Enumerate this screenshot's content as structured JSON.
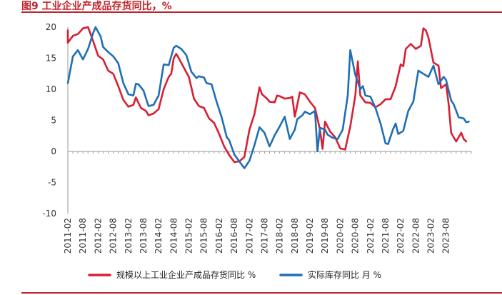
{
  "title": "图9  工业企业产成品存货同比，%",
  "colors": {
    "accent": "#c0232b",
    "series1": "#d71f34",
    "series2": "#1f6fb5",
    "axis": "#9a9a9a"
  },
  "chart_data": {
    "type": "line",
    "x_ticks": [
      "2011-02",
      "2011-08",
      "2012-02",
      "2012-08",
      "2013-02",
      "2013-08",
      "2014-02",
      "2014-08",
      "2015-02",
      "2015-08",
      "2016-02",
      "2016-08",
      "2017-02",
      "2017-08",
      "2018-02",
      "2018-08",
      "2019-02",
      "2019-08",
      "2020-02",
      "2020-08",
      "2021-02",
      "2021-08",
      "2022-02",
      "2022-08",
      "2023-02",
      "2023-08"
    ],
    "y_ticks": [
      20,
      15,
      10,
      5,
      0,
      -5,
      -10
    ],
    "ylim": [
      -10,
      20
    ],
    "grid": false,
    "legend_position": "bottom",
    "series": [
      {
        "name": "规模以上工业企业产成品存货同比 %",
        "color": "#d71f34",
        "points": [
          [
            "2011-02",
            19.5
          ],
          [
            "2011-02",
            17.5
          ],
          [
            "2011-04",
            18.6
          ],
          [
            "2011-06",
            18.9
          ],
          [
            "2011-08",
            19.8
          ],
          [
            "2011-10",
            20.0
          ],
          [
            "2011-12",
            17.8
          ],
          [
            "2012-02",
            15.4
          ],
          [
            "2012-04",
            14.8
          ],
          [
            "2012-06",
            13.0
          ],
          [
            "2012-08",
            12.5
          ],
          [
            "2012-10",
            10.5
          ],
          [
            "2012-12",
            8.3
          ],
          [
            "2013-02",
            7.2
          ],
          [
            "2013-04",
            7.5
          ],
          [
            "2013-05",
            8.7
          ],
          [
            "2013-06",
            7.8
          ],
          [
            "2013-07",
            7.0
          ],
          [
            "2013-09",
            6.5
          ],
          [
            "2013-10",
            5.8
          ],
          [
            "2013-12",
            6.1
          ],
          [
            "2014-02",
            6.8
          ],
          [
            "2014-04",
            10.0
          ],
          [
            "2014-05",
            11.0
          ],
          [
            "2014-06",
            12.0
          ],
          [
            "2014-07",
            12.5
          ],
          [
            "2014-08",
            15.0
          ],
          [
            "2014-09",
            15.7
          ],
          [
            "2014-10",
            15.0
          ],
          [
            "2014-12",
            13.5
          ],
          [
            "2015-02",
            12.0
          ],
          [
            "2015-04",
            8.5
          ],
          [
            "2015-06",
            7.3
          ],
          [
            "2015-08",
            7.0
          ],
          [
            "2015-10",
            5.3
          ],
          [
            "2015-12",
            4.6
          ],
          [
            "2016-02",
            2.8
          ],
          [
            "2016-04",
            0.8
          ],
          [
            "2016-06",
            -0.6
          ],
          [
            "2016-08",
            -1.7
          ],
          [
            "2016-10",
            -1.6
          ],
          [
            "2016-12",
            -0.9
          ],
          [
            "2017-02",
            3.5
          ],
          [
            "2017-04",
            6.0
          ],
          [
            "2017-06",
            10.3
          ],
          [
            "2017-07",
            9.2
          ],
          [
            "2017-09",
            8.5
          ],
          [
            "2017-10",
            8.0
          ],
          [
            "2017-12",
            7.9
          ],
          [
            "2018-01",
            9.0
          ],
          [
            "2018-02",
            8.9
          ],
          [
            "2018-04",
            8.5
          ],
          [
            "2018-06",
            8.6
          ],
          [
            "2018-07",
            8.8
          ],
          [
            "2018-08",
            5.6
          ],
          [
            "2018-09",
            7.5
          ],
          [
            "2018-10",
            9.5
          ],
          [
            "2018-12",
            9.2
          ],
          [
            "2019-02",
            8.0
          ],
          [
            "2019-04",
            7.0
          ],
          [
            "2019-06",
            3.5
          ],
          [
            "2019-07",
            0.4
          ],
          [
            "2019-08",
            4.8
          ],
          [
            "2019-10",
            3.2
          ],
          [
            "2019-12",
            2.3
          ],
          [
            "2020-02",
            0.5
          ],
          [
            "2020-04",
            0.3
          ],
          [
            "2020-06",
            4.0
          ],
          [
            "2020-08",
            9.0
          ],
          [
            "2020-09",
            14.5
          ],
          [
            "2020-10",
            9.0
          ],
          [
            "2020-12",
            7.9
          ],
          [
            "2021-02",
            7.8
          ],
          [
            "2021-04",
            7.1
          ],
          [
            "2021-06",
            7.6
          ],
          [
            "2021-08",
            8.4
          ],
          [
            "2021-10",
            8.4
          ],
          [
            "2021-12",
            10.5
          ],
          [
            "2022-02",
            14.0
          ],
          [
            "2022-03",
            13.7
          ],
          [
            "2022-04",
            16.5
          ],
          [
            "2022-06",
            17.3
          ],
          [
            "2022-08",
            16.5
          ],
          [
            "2022-10",
            17.0
          ],
          [
            "2022-11",
            19.8
          ],
          [
            "2022-12",
            19.5
          ],
          [
            "2023-01",
            18.3
          ],
          [
            "2023-03",
            14.3
          ],
          [
            "2023-05",
            13.8
          ],
          [
            "2023-06",
            10.2
          ],
          [
            "2023-08",
            10.8
          ],
          [
            "2023-09",
            7.7
          ],
          [
            "2023-10",
            3.0
          ],
          [
            "2023-12",
            1.6
          ],
          [
            "2024-02",
            3.0
          ],
          [
            "2024-03",
            2.0
          ],
          [
            "2024-04",
            1.6
          ]
        ]
      },
      {
        "name": "实际库存同比 月 %",
        "color": "#1f6fb5",
        "points": [
          [
            "2011-02",
            11.0
          ],
          [
            "2011-04",
            15.3
          ],
          [
            "2011-06",
            16.3
          ],
          [
            "2011-08",
            14.8
          ],
          [
            "2011-10",
            16.5
          ],
          [
            "2011-12",
            19.0
          ],
          [
            "2012-01",
            20.0
          ],
          [
            "2012-03",
            18.5
          ],
          [
            "2012-04",
            16.8
          ],
          [
            "2012-06",
            16.0
          ],
          [
            "2012-08",
            15.3
          ],
          [
            "2012-10",
            14.2
          ],
          [
            "2012-12",
            11.0
          ],
          [
            "2013-02",
            9.2
          ],
          [
            "2013-04",
            9.0
          ],
          [
            "2013-05",
            10.9
          ],
          [
            "2013-06",
            10.8
          ],
          [
            "2013-08",
            9.8
          ],
          [
            "2013-10",
            7.3
          ],
          [
            "2013-12",
            7.5
          ],
          [
            "2014-02",
            9.0
          ],
          [
            "2014-04",
            14.0
          ],
          [
            "2014-06",
            13.9
          ],
          [
            "2014-08",
            16.7
          ],
          [
            "2014-09",
            17.0
          ],
          [
            "2014-11",
            16.5
          ],
          [
            "2015-01",
            15.5
          ],
          [
            "2015-03",
            12.8
          ],
          [
            "2015-05",
            11.8
          ],
          [
            "2015-06",
            12.1
          ],
          [
            "2015-08",
            11.9
          ],
          [
            "2015-09",
            11.0
          ],
          [
            "2015-11",
            10.8
          ],
          [
            "2016-01",
            8.0
          ],
          [
            "2016-03",
            5.5
          ],
          [
            "2016-05",
            2.3
          ],
          [
            "2016-06",
            1.8
          ],
          [
            "2016-08",
            -0.5
          ],
          [
            "2016-10",
            -1.6
          ],
          [
            "2016-12",
            -2.7
          ],
          [
            "2017-02",
            -1.5
          ],
          [
            "2017-04",
            1.0
          ],
          [
            "2017-06",
            3.9
          ],
          [
            "2017-08",
            3.0
          ],
          [
            "2017-10",
            0.8
          ],
          [
            "2017-12",
            2.6
          ],
          [
            "2018-02",
            4.0
          ],
          [
            "2018-04",
            5.6
          ],
          [
            "2018-06",
            2.0
          ],
          [
            "2018-08",
            3.5
          ],
          [
            "2018-09",
            5.2
          ],
          [
            "2018-11",
            5.8
          ],
          [
            "2018-12",
            6.4
          ],
          [
            "2019-02",
            6.0
          ],
          [
            "2019-04",
            6.5
          ],
          [
            "2019-05",
            0.0
          ],
          [
            "2019-06",
            3.8
          ],
          [
            "2019-08",
            3.5
          ],
          [
            "2019-09",
            2.7
          ],
          [
            "2019-11",
            2.2
          ],
          [
            "2020-01",
            2.0
          ],
          [
            "2020-03",
            3.5
          ],
          [
            "2020-05",
            9.0
          ],
          [
            "2020-06",
            16.3
          ],
          [
            "2020-08",
            12.3
          ],
          [
            "2020-10",
            10.0
          ],
          [
            "2020-11",
            10.5
          ],
          [
            "2020-12",
            9.0
          ],
          [
            "2021-02",
            8.8
          ],
          [
            "2021-04",
            7.0
          ],
          [
            "2021-06",
            4.5
          ],
          [
            "2021-08",
            1.3
          ],
          [
            "2021-09",
            1.2
          ],
          [
            "2021-11",
            3.6
          ],
          [
            "2021-12",
            4.5
          ],
          [
            "2022-01",
            2.8
          ],
          [
            "2022-03",
            3.3
          ],
          [
            "2022-05",
            6.5
          ],
          [
            "2022-07",
            8.0
          ],
          [
            "2022-09",
            13.0
          ],
          [
            "2022-11",
            12.5
          ],
          [
            "2023-01",
            12.0
          ],
          [
            "2023-03",
            13.8
          ],
          [
            "2023-05",
            10.8
          ],
          [
            "2023-07",
            12.0
          ],
          [
            "2023-08",
            11.5
          ],
          [
            "2023-10",
            8.2
          ],
          [
            "2023-11",
            7.6
          ],
          [
            "2024-01",
            5.5
          ],
          [
            "2024-03",
            5.3
          ],
          [
            "2024-04",
            4.7
          ],
          [
            "2024-05",
            4.8
          ]
        ]
      }
    ]
  }
}
